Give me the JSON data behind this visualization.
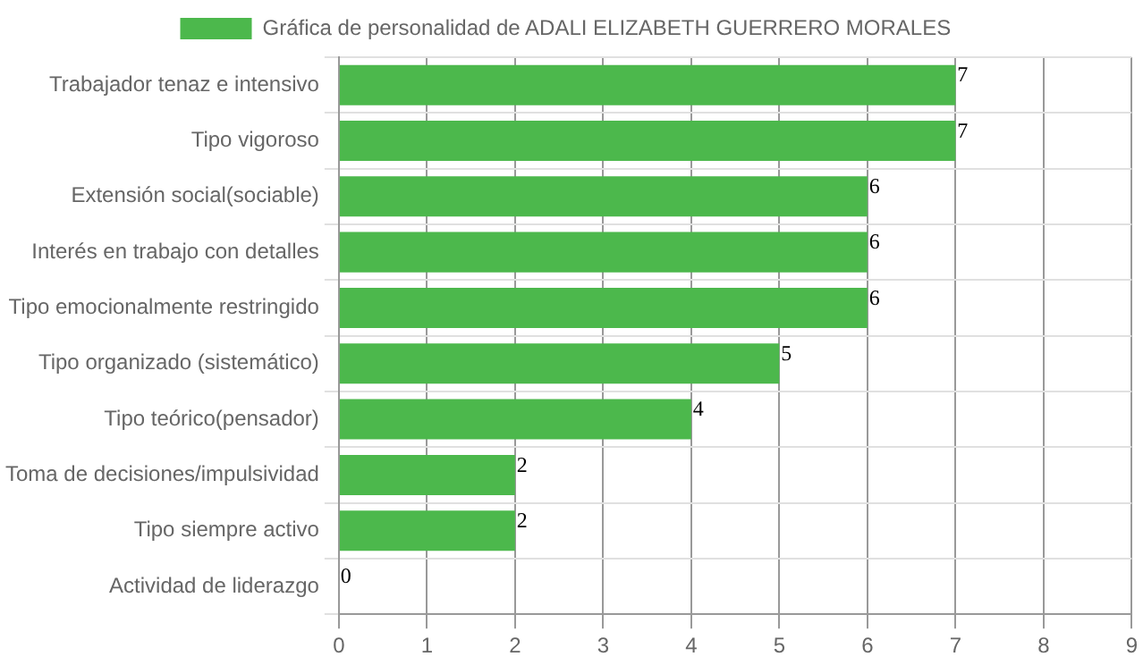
{
  "chart_data": {
    "type": "bar",
    "orientation": "horizontal",
    "categories": [
      "Trabajador tenaz e intensivo",
      "Tipo vigoroso",
      "Extensión social(sociable)",
      "Interés en trabajo con detalles",
      "Tipo emocionalmente restringido",
      "Tipo organizado (sistemático)",
      "Tipo teórico(pensador)",
      "Toma de decisiones/impulsividad",
      "Tipo siempre activo",
      "Actividad de liderazgo"
    ],
    "series": [
      {
        "name": "Gráfica de personalidad de ADALI ELIZABETH GUERRERO MORALES",
        "color": "#4cb84c",
        "values": [
          7,
          7,
          6,
          6,
          6,
          5,
          4,
          2,
          2,
          0
        ]
      }
    ],
    "xlim": [
      0,
      9
    ],
    "xticks": [
      0,
      1,
      2,
      3,
      4,
      5,
      6,
      7,
      8,
      9
    ],
    "grid": true,
    "legend": "top",
    "data_labels": true
  }
}
